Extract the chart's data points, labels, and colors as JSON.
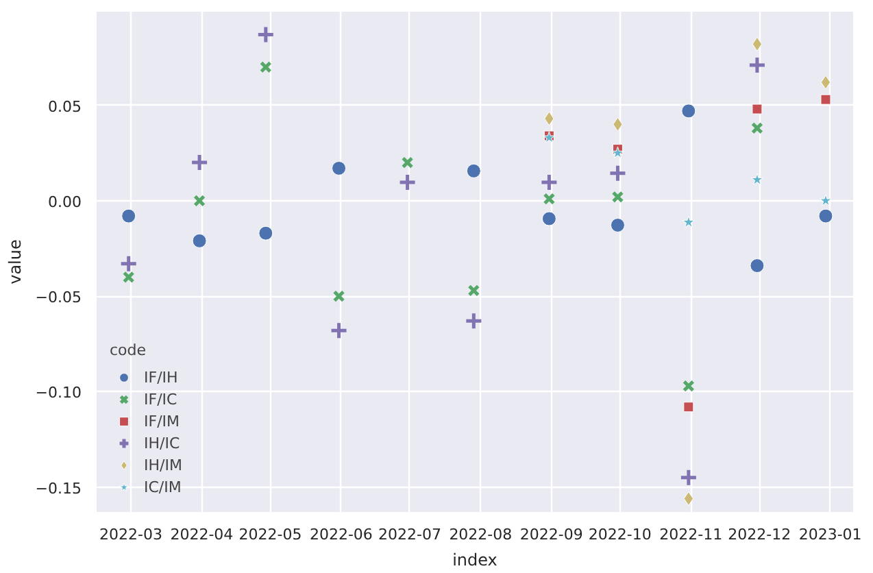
{
  "chart_data": {
    "type": "scatter",
    "xlabel": "index",
    "ylabel": "value",
    "legend_title": "code",
    "legend": "bottom left",
    "grid": true,
    "x": [
      "2022-02-28",
      "2022-03-31",
      "2022-04-29",
      "2022-05-31",
      "2022-06-30",
      "2022-07-29",
      "2022-08-31",
      "2022-09-30",
      "2022-10-31",
      "2022-11-30",
      "2022-12-30"
    ],
    "xlim": [
      "2022-02-14",
      "2023-01-11"
    ],
    "xticks": [
      "2022-03",
      "2022-04",
      "2022-05",
      "2022-06",
      "2022-07",
      "2022-08",
      "2022-09",
      "2022-10",
      "2022-11",
      "2022-12",
      "2023-01"
    ],
    "ylim": [
      -0.163,
      0.099
    ],
    "yticks": [
      {
        "value": -0.15,
        "label": "−0.15"
      },
      {
        "value": -0.1,
        "label": "−0.10"
      },
      {
        "value": -0.05,
        "label": "−0.05"
      },
      {
        "value": 0,
        "label": "0.00"
      },
      {
        "value": 0.05,
        "label": "0.05"
      }
    ],
    "series": [
      {
        "name": "IF/IH",
        "color": "#4c72b0",
        "marker": "circle",
        "values": [
          -0.008,
          -0.021,
          -0.017,
          0.017,
          null,
          0.0156,
          -0.0094,
          -0.0128,
          0.047,
          -0.034,
          -0.008
        ]
      },
      {
        "name": "IF/IC",
        "color": "#55a868",
        "marker": "x",
        "values": [
          -0.04,
          0.0,
          0.07,
          -0.05,
          0.02,
          -0.047,
          0.001,
          0.002,
          -0.097,
          0.038,
          null
        ]
      },
      {
        "name": "IF/IM",
        "color": "#c44e52",
        "marker": "square",
        "values": [
          null,
          null,
          null,
          null,
          null,
          null,
          0.034,
          0.027,
          -0.108,
          0.048,
          0.053
        ]
      },
      {
        "name": "IH/IC",
        "color": "#8172b2",
        "marker": "cross",
        "values": [
          -0.033,
          0.02,
          0.087,
          -0.068,
          0.0096,
          -0.063,
          0.0096,
          0.0144,
          -0.145,
          0.071,
          null
        ]
      },
      {
        "name": "IH/IM",
        "color": "#ccb974",
        "marker": "diamond",
        "values": [
          null,
          null,
          null,
          null,
          null,
          null,
          0.043,
          0.04,
          -0.156,
          0.082,
          0.062
        ]
      },
      {
        "name": "IC/IM",
        "color": "#64b5cd",
        "marker": "star",
        "values": [
          null,
          null,
          null,
          null,
          null,
          null,
          0.033,
          0.025,
          -0.0113,
          0.011,
          0.0
        ]
      }
    ]
  }
}
